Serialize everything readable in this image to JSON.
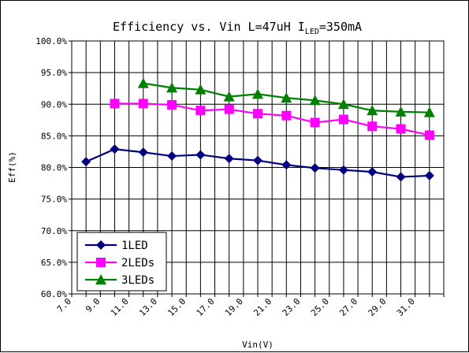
{
  "chart_data": {
    "type": "line",
    "title": "Efficiency vs. Vin L=47uH I",
    "title_sub": "LED",
    "title_suffix": "=350mA",
    "xlabel": "Vin(V)",
    "ylabel": "Eff(%)",
    "x_ticks": [
      "7.0",
      "9.0",
      "11.0",
      "13.0",
      "15.0",
      "17.0",
      "19.0",
      "21.0",
      "23.0",
      "25.0",
      "27.0",
      "29.0",
      "31.0"
    ],
    "y_ticks": [
      "60.0%",
      "65.0%",
      "70.0%",
      "75.0%",
      "80.0%",
      "85.0%",
      "90.0%",
      "95.0%",
      "100.0%"
    ],
    "xlim": [
      7,
      33
    ],
    "ylim": [
      60,
      100
    ],
    "grid": true,
    "legend_position": "bottom-left",
    "series": [
      {
        "name": "1LED",
        "color": "#000080",
        "marker": "diamond",
        "x": [
          8,
          10,
          12,
          14,
          16,
          18,
          20,
          22,
          24,
          26,
          28,
          30,
          32
        ],
        "values": [
          80.9,
          82.9,
          82.4,
          81.8,
          82.0,
          81.4,
          81.1,
          80.4,
          79.9,
          79.6,
          79.3,
          78.5,
          78.7
        ]
      },
      {
        "name": "2LEDs",
        "color": "#FF00FF",
        "marker": "square",
        "x": [
          10,
          12,
          14,
          16,
          18,
          20,
          22,
          24,
          26,
          28,
          30,
          32
        ],
        "values": [
          90.1,
          90.1,
          89.9,
          89.0,
          89.2,
          88.5,
          88.2,
          87.1,
          87.6,
          86.5,
          86.1,
          85.1
        ]
      },
      {
        "name": "3LEDs",
        "color": "#008000",
        "marker": "triangle",
        "x": [
          12,
          14,
          16,
          18,
          20,
          22,
          24,
          26,
          28,
          30,
          32
        ],
        "values": [
          93.3,
          92.6,
          92.3,
          91.2,
          91.6,
          91.0,
          90.6,
          90.0,
          89.0,
          88.8,
          88.7
        ]
      }
    ]
  }
}
